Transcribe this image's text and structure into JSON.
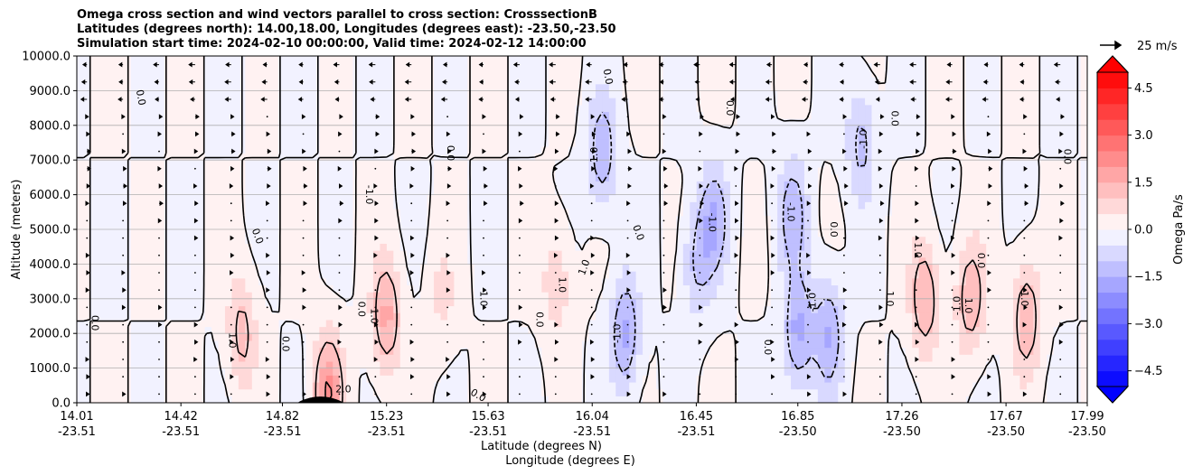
{
  "chart_data": {
    "type": "heatmap",
    "title_lines": [
      "Omega cross section and wind vectors parallel to cross section: CrosssectionB",
      "Latitudes (degrees north): 14.00,18.00, Longitudes (degrees east): -23.50,-23.50",
      "Simulation start time: 2024-02-10 00:00:00, Valid time: 2024-02-12 14:00:00"
    ],
    "ylabel": "Altitude (meters)",
    "xlabel_lines": [
      "Latitude (degrees N)",
      "Longitude (degrees E)"
    ],
    "ylim": [
      0,
      10000
    ],
    "y_ticks": [
      "0.0",
      "1000.0",
      "2000.0",
      "3000.0",
      "4000.0",
      "5000.0",
      "6000.0",
      "7000.0",
      "8000.0",
      "9000.0",
      "10000.0"
    ],
    "x_ticks": [
      {
        "lat": "14.01",
        "lon": "-23.51"
      },
      {
        "lat": "14.42",
        "lon": "-23.51"
      },
      {
        "lat": "14.82",
        "lon": "-23.51"
      },
      {
        "lat": "15.23",
        "lon": "-23.51"
      },
      {
        "lat": "15.63",
        "lon": "-23.51"
      },
      {
        "lat": "16.04",
        "lon": "-23.51"
      },
      {
        "lat": "16.45",
        "lon": "-23.51"
      },
      {
        "lat": "16.85",
        "lon": "-23.50"
      },
      {
        "lat": "17.26",
        "lon": "-23.50"
      },
      {
        "lat": "17.67",
        "lon": "-23.50"
      },
      {
        "lat": "17.99",
        "lon": "-23.50"
      }
    ],
    "grid": "horizontal",
    "colorbar": {
      "label": "Omega Pa/s",
      "range": [
        -5,
        5
      ],
      "step": 0.5,
      "extend": "both",
      "tick_labels": [
        "4.5",
        "3.0",
        "1.5",
        "0.0",
        "−1.5",
        "−3.0",
        "−4.5"
      ]
    },
    "wind_key": "25 m/s",
    "contour_levels": [
      -1.0,
      0.0,
      1.0,
      2.0
    ],
    "omega_features": [
      {
        "lat": 15.23,
        "altitude": 2500,
        "omega": 1.6
      },
      {
        "lat": 14.66,
        "altitude": 2000,
        "omega": 1.2
      },
      {
        "lat": 15.0,
        "altitude": 300,
        "omega": 2.0
      },
      {
        "lat": 16.17,
        "altitude": 2000,
        "omega": -1.6
      },
      {
        "lat": 16.08,
        "altitude": 7200,
        "omega": -1.4
      },
      {
        "lat": 16.52,
        "altitude": 5300,
        "omega": -1.4
      },
      {
        "lat": 16.85,
        "altitude": 2000,
        "omega": -1.6
      },
      {
        "lat": 16.83,
        "altitude": 5500,
        "omega": -1.3
      },
      {
        "lat": 16.97,
        "altitude": 2000,
        "omega": -1.5
      },
      {
        "lat": 17.1,
        "altitude": 7500,
        "omega": -1.2
      },
      {
        "lat": 17.35,
        "altitude": 3000,
        "omega": 1.5
      },
      {
        "lat": 17.53,
        "altitude": 3000,
        "omega": 1.4
      },
      {
        "lat": 17.75,
        "altitude": 2500,
        "omega": 1.5
      },
      {
        "lat": 16.45,
        "altitude": 4000,
        "omega": -1.0
      },
      {
        "lat": 15.45,
        "altitude": 3000,
        "omega": 0.6
      },
      {
        "lat": 15.9,
        "altitude": 3500,
        "omega": 0.9
      }
    ],
    "contour_labels": [
      "0.0",
      "1.0",
      "-1.0",
      "2.0"
    ]
  },
  "colors": {
    "positive": "#ff0000",
    "negative": "#0000ff",
    "contour": "#000000",
    "grid": "#b0b0b0",
    "terrain": "#000000"
  }
}
